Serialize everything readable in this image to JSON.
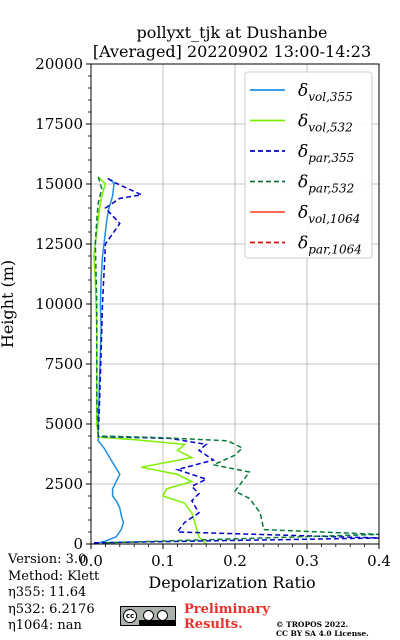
{
  "chart_data": {
    "type": "line",
    "title_line1": "pollyxt_tjk at Dushanbe",
    "title_line2": "[Averaged] 20220902 13:00-14:23",
    "xlabel": "Depolarization Ratio",
    "ylabel": "Height (m)",
    "xlim": [
      0.0,
      0.4
    ],
    "ylim": [
      0,
      20000
    ],
    "xticks": [
      "0.0",
      "0.1",
      "0.2",
      "0.3",
      "0.4"
    ],
    "yticks": [
      "0",
      "2500",
      "5000",
      "7500",
      "10000",
      "12500",
      "15000",
      "17500",
      "20000"
    ],
    "grid": true,
    "legend_placement": "top-right",
    "series": [
      {
        "key": "vol355",
        "name_main": "δ",
        "name_sub": "vol,355",
        "color": "#1f8fe0",
        "dash": "solid",
        "points": [
          [
            0.004,
            0
          ],
          [
            0.02,
            120
          ],
          [
            0.035,
            300
          ],
          [
            0.042,
            600
          ],
          [
            0.045,
            900
          ],
          [
            0.042,
            1200
          ],
          [
            0.04,
            1500
          ],
          [
            0.035,
            1800
          ],
          [
            0.03,
            2000
          ],
          [
            0.03,
            2300
          ],
          [
            0.035,
            2600
          ],
          [
            0.04,
            2900
          ],
          [
            0.032,
            3300
          ],
          [
            0.024,
            3700
          ],
          [
            0.018,
            4000
          ],
          [
            0.01,
            4300
          ],
          [
            0.01,
            4500
          ],
          [
            0.01,
            5000
          ],
          [
            0.011,
            6000
          ],
          [
            0.012,
            7000
          ],
          [
            0.013,
            8000
          ],
          [
            0.014,
            9000
          ],
          [
            0.013,
            10000
          ],
          [
            0.014,
            11000
          ],
          [
            0.016,
            12000
          ],
          [
            0.018,
            12500
          ],
          [
            0.02,
            13000
          ],
          [
            0.022,
            13500
          ],
          [
            0.025,
            14000
          ],
          [
            0.03,
            14500
          ],
          [
            0.032,
            15000
          ],
          [
            0.028,
            15200
          ]
        ]
      },
      {
        "key": "vol532",
        "name_main": "δ",
        "name_sub": "vol,532",
        "color": "#7cf000",
        "dash": "solid",
        "points": [
          [
            0.16,
            0
          ],
          [
            0.15,
            300
          ],
          [
            0.145,
            800
          ],
          [
            0.14,
            1300
          ],
          [
            0.13,
            1700
          ],
          [
            0.1,
            2000
          ],
          [
            0.105,
            2300
          ],
          [
            0.14,
            2600
          ],
          [
            0.12,
            2900
          ],
          [
            0.07,
            3200
          ],
          [
            0.14,
            3600
          ],
          [
            0.12,
            3900
          ],
          [
            0.13,
            4150
          ],
          [
            0.06,
            4350
          ],
          [
            0.01,
            4450
          ],
          [
            0.008,
            5000
          ],
          [
            0.008,
            6000
          ],
          [
            0.008,
            7000
          ],
          [
            0.008,
            8000
          ],
          [
            0.008,
            9000
          ],
          [
            0.007,
            10000
          ],
          [
            0.006,
            11000
          ],
          [
            0.004,
            12000
          ],
          [
            0.006,
            12500
          ],
          [
            0.008,
            13000
          ],
          [
            0.01,
            13500
          ],
          [
            0.012,
            14000
          ],
          [
            0.015,
            14500
          ],
          [
            0.02,
            15000
          ],
          [
            0.01,
            15300
          ]
        ]
      },
      {
        "key": "par355",
        "name_main": "δ",
        "name_sub": "par,355",
        "color": "#0000cc",
        "dash": "dashed",
        "points": [
          [
            0.004,
            50
          ],
          [
            0.4,
            250
          ],
          [
            0.12,
            500
          ],
          [
            0.13,
            900
          ],
          [
            0.15,
            1300
          ],
          [
            0.14,
            1800
          ],
          [
            0.15,
            2100
          ],
          [
            0.14,
            2400
          ],
          [
            0.16,
            2700
          ],
          [
            0.12,
            3100
          ],
          [
            0.17,
            3500
          ],
          [
            0.15,
            3900
          ],
          [
            0.16,
            4150
          ],
          [
            0.11,
            4400
          ],
          [
            0.01,
            4480
          ],
          [
            0.012,
            6000
          ],
          [
            0.014,
            8000
          ],
          [
            0.016,
            10000
          ],
          [
            0.02,
            12500
          ],
          [
            0.04,
            13350
          ],
          [
            0.02,
            14000
          ],
          [
            0.04,
            14400
          ],
          [
            0.07,
            14550
          ],
          [
            0.03,
            15100
          ],
          [
            0.02,
            15300
          ]
        ]
      },
      {
        "key": "par532",
        "name_main": "δ",
        "name_sub": "par,532",
        "color": "#0a7a3c",
        "dash": "dashed",
        "points": [
          [
            0.02,
            50
          ],
          [
            0.4,
            400
          ],
          [
            0.24,
            600
          ],
          [
            0.235,
            1300
          ],
          [
            0.22,
            1900
          ],
          [
            0.2,
            2200
          ],
          [
            0.21,
            2600
          ],
          [
            0.22,
            3000
          ],
          [
            0.17,
            3300
          ],
          [
            0.2,
            3700
          ],
          [
            0.21,
            4000
          ],
          [
            0.19,
            4300
          ],
          [
            0.1,
            4430
          ],
          [
            0.01,
            4500
          ],
          [
            0.008,
            6000
          ],
          [
            0.008,
            8000
          ],
          [
            0.008,
            10000
          ],
          [
            0.006,
            12500
          ],
          [
            0.008,
            13500
          ],
          [
            0.01,
            14200
          ],
          [
            0.015,
            14800
          ],
          [
            0.01,
            15300
          ]
        ]
      },
      {
        "key": "vol1064",
        "name_main": "δ",
        "name_sub": "vol,1064",
        "color": "#ff5a3c",
        "dash": "solid",
        "points": []
      },
      {
        "key": "par1064",
        "name_main": "δ",
        "name_sub": "par,1064",
        "color": "#dd1111",
        "dash": "dashed",
        "points": []
      }
    ]
  },
  "info": {
    "version": "Version: 3.0",
    "method": "Method: Klett",
    "eta355": "η355:  11.64",
    "eta532": "η532: 6.2176",
    "eta1064": "η1064:    nan"
  },
  "badge": {
    "license_logo": "cc-by-sa-icon"
  },
  "preliminary": [
    "Preliminary",
    "Results."
  ],
  "license": [
    "© TROPOS 2022.",
    "CC BY SA 4.0 License."
  ]
}
